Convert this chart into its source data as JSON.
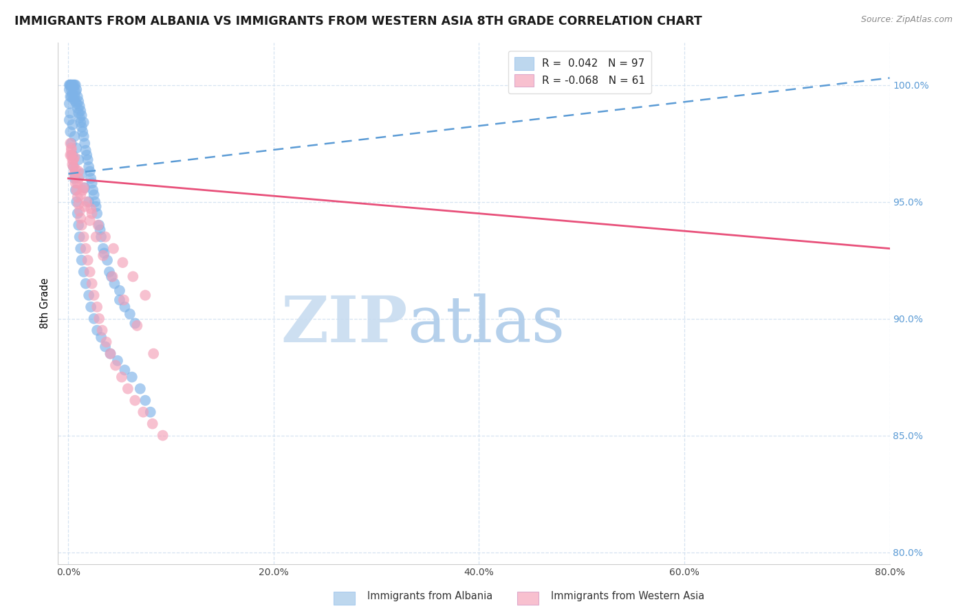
{
  "title": "IMMIGRANTS FROM ALBANIA VS IMMIGRANTS FROM WESTERN ASIA 8TH GRADE CORRELATION CHART",
  "source": "Source: ZipAtlas.com",
  "xlabel_vals": [
    0.0,
    20.0,
    40.0,
    60.0,
    80.0
  ],
  "ylabel_vals": [
    80.0,
    85.0,
    90.0,
    95.0,
    100.0
  ],
  "xmin": -1.0,
  "xmax": 80.0,
  "ymin": 79.5,
  "ymax": 101.8,
  "albania_R": 0.042,
  "albania_N": 97,
  "western_asia_R": -0.068,
  "western_asia_N": 61,
  "albania_color": "#7EB3E8",
  "western_asia_color": "#F4A0B8",
  "trend_albania_color": "#5B9BD5",
  "trend_western_color": "#E8507A",
  "legend_albania_color": "#BDD7EE",
  "legend_western_color": "#F8C0CF",
  "watermark_zip_color": "#C8DCF0",
  "watermark_atlas_color": "#A8C8E8",
  "ylabel_color": "#5B9BD5",
  "grid_color": "#CCDDEE",
  "trend_alb_y0": 96.2,
  "trend_alb_y1": 100.3,
  "trend_west_y0": 96.0,
  "trend_west_y1": 93.0,
  "alb_scatter_x": [
    0.1,
    0.1,
    0.2,
    0.2,
    0.2,
    0.3,
    0.3,
    0.3,
    0.4,
    0.4,
    0.5,
    0.5,
    0.5,
    0.6,
    0.6,
    0.7,
    0.7,
    0.7,
    0.8,
    0.8,
    0.9,
    0.9,
    1.0,
    1.0,
    1.1,
    1.1,
    1.2,
    1.2,
    1.3,
    1.3,
    1.4,
    1.5,
    1.5,
    1.6,
    1.7,
    1.8,
    1.9,
    2.0,
    2.1,
    2.2,
    2.3,
    2.4,
    2.5,
    2.6,
    2.7,
    2.8,
    3.0,
    3.1,
    3.2,
    3.4,
    3.5,
    3.8,
    4.0,
    4.2,
    4.5,
    5.0,
    5.0,
    5.5,
    6.0,
    6.5,
    0.1,
    0.2,
    0.3,
    0.4,
    0.5,
    0.6,
    0.7,
    0.8,
    0.9,
    1.0,
    1.1,
    1.2,
    1.3,
    1.5,
    1.7,
    2.0,
    2.2,
    2.5,
    2.8,
    3.2,
    3.6,
    4.1,
    4.8,
    5.5,
    6.2,
    7.0,
    7.5,
    8.0,
    0.1,
    0.2,
    0.4,
    0.6,
    0.8,
    1.0,
    1.3,
    1.6,
    2.0
  ],
  "alb_scatter_y": [
    99.8,
    100.0,
    99.5,
    100.0,
    100.0,
    99.8,
    100.0,
    99.5,
    99.6,
    100.0,
    99.4,
    99.8,
    100.0,
    99.5,
    100.0,
    99.3,
    99.7,
    100.0,
    99.2,
    99.8,
    99.0,
    99.5,
    98.8,
    99.3,
    98.6,
    99.1,
    98.4,
    98.9,
    98.2,
    98.7,
    98.0,
    97.8,
    98.4,
    97.5,
    97.2,
    97.0,
    96.8,
    96.5,
    96.3,
    96.0,
    95.8,
    95.5,
    95.3,
    95.0,
    94.8,
    94.5,
    94.0,
    93.8,
    93.5,
    93.0,
    92.8,
    92.5,
    92.0,
    91.8,
    91.5,
    91.2,
    90.8,
    90.5,
    90.2,
    89.8,
    98.5,
    98.0,
    97.5,
    97.0,
    96.5,
    96.0,
    95.5,
    95.0,
    94.5,
    94.0,
    93.5,
    93.0,
    92.5,
    92.0,
    91.5,
    91.0,
    90.5,
    90.0,
    89.5,
    89.2,
    88.8,
    88.5,
    88.2,
    87.8,
    87.5,
    87.0,
    86.5,
    86.0,
    99.2,
    98.8,
    98.3,
    97.8,
    97.3,
    96.8,
    96.2,
    95.6,
    95.0
  ],
  "west_scatter_x": [
    0.2,
    0.3,
    0.4,
    0.5,
    0.6,
    0.7,
    0.8,
    0.9,
    1.0,
    1.1,
    1.2,
    1.3,
    1.5,
    1.7,
    1.9,
    2.1,
    2.3,
    2.5,
    2.8,
    3.0,
    3.3,
    3.7,
    4.1,
    4.6,
    5.2,
    5.8,
    6.5,
    7.3,
    8.2,
    9.2,
    0.3,
    0.5,
    0.7,
    1.0,
    1.4,
    1.8,
    2.3,
    2.9,
    3.6,
    4.4,
    5.3,
    6.3,
    7.5,
    0.2,
    0.4,
    0.6,
    0.9,
    1.2,
    1.6,
    2.1,
    2.7,
    3.4,
    4.3,
    5.4,
    6.7,
    8.3,
    0.3,
    0.6,
    1.0,
    1.5,
    2.2
  ],
  "west_scatter_y": [
    97.5,
    97.0,
    96.8,
    96.5,
    96.2,
    95.8,
    95.5,
    95.2,
    94.9,
    94.6,
    94.3,
    94.0,
    93.5,
    93.0,
    92.5,
    92.0,
    91.5,
    91.0,
    90.5,
    90.0,
    89.5,
    89.0,
    88.5,
    88.0,
    87.5,
    87.0,
    86.5,
    86.0,
    85.5,
    85.0,
    97.2,
    96.8,
    96.4,
    96.0,
    95.5,
    95.0,
    94.5,
    94.0,
    93.5,
    93.0,
    92.4,
    91.8,
    91.0,
    97.0,
    96.6,
    96.2,
    95.8,
    95.3,
    94.8,
    94.2,
    93.5,
    92.7,
    91.8,
    90.8,
    89.7,
    88.5,
    97.3,
    96.9,
    96.3,
    95.6,
    94.7
  ]
}
